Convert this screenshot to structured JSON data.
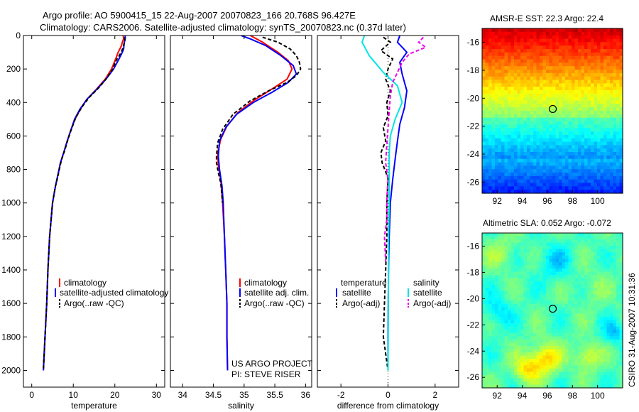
{
  "title_line1": "Argo profile: AO 5900415_15 22-Aug-2007 20070823_166 20.768S 96.427E",
  "title_line2": "Climatology: CARS2006. Satellite-adjusted climatology: synTS_20070823.nc (0.37d later)",
  "side_label": "CSIRO 31-Aug-2007 10:31:36",
  "project_line1": "US ARGO PROJECT",
  "project_line2": "PI: STEVE RISER",
  "chart_data": [
    {
      "type": "line",
      "name": "temperature-profile",
      "xlabel": "temperature",
      "ylabel": "",
      "xlim": [
        -2,
        32
      ],
      "ylim": [
        2100,
        0
      ],
      "xticks": [
        0,
        10,
        20,
        30
      ],
      "yticks": [
        0,
        200,
        400,
        600,
        800,
        1000,
        1200,
        1400,
        1600,
        1800,
        2000
      ],
      "legend": [
        "climatology",
        "satellite-adjusted climatology",
        "Argo(..raw -QC)"
      ],
      "series": [
        {
          "name": "climatology",
          "color": "#ff0000",
          "width": 2,
          "points": [
            [
              22.0,
              0
            ],
            [
              22.1,
              20
            ],
            [
              21.8,
              40
            ],
            [
              21.6,
              60
            ],
            [
              21.2,
              80
            ],
            [
              20.8,
              100
            ],
            [
              20.2,
              140
            ],
            [
              19.2,
              200
            ],
            [
              17.7,
              260
            ],
            [
              15.6,
              320
            ],
            [
              13.3,
              380
            ],
            [
              11.7,
              440
            ],
            [
              10.4,
              500
            ],
            [
              9.2,
              580
            ],
            [
              8.4,
              640
            ],
            [
              7.8,
              690
            ],
            [
              6.9,
              760
            ],
            [
              6.4,
              820
            ],
            [
              5.7,
              900
            ],
            [
              5.0,
              1000
            ],
            [
              4.3,
              1200
            ],
            [
              3.9,
              1400
            ],
            [
              3.6,
              1600
            ],
            [
              3.2,
              1800
            ],
            [
              2.8,
              2000
            ]
          ]
        },
        {
          "name": "satellite-adjusted climatology",
          "color": "#0000ff",
          "width": 2,
          "points": [
            [
              22.5,
              0
            ],
            [
              22.5,
              20
            ],
            [
              22.3,
              40
            ],
            [
              22.2,
              60
            ],
            [
              22.1,
              80
            ],
            [
              21.8,
              100
            ],
            [
              21.0,
              140
            ],
            [
              19.7,
              200
            ],
            [
              17.9,
              260
            ],
            [
              15.7,
              320
            ],
            [
              13.3,
              380
            ],
            [
              11.6,
              440
            ],
            [
              10.3,
              500
            ],
            [
              9.2,
              580
            ],
            [
              8.4,
              640
            ],
            [
              7.8,
              690
            ],
            [
              6.9,
              760
            ],
            [
              6.4,
              820
            ],
            [
              5.7,
              900
            ],
            [
              5.0,
              1000
            ],
            [
              4.3,
              1200
            ],
            [
              3.9,
              1400
            ],
            [
              3.6,
              1600
            ],
            [
              3.2,
              1800
            ],
            [
              2.8,
              2000
            ]
          ]
        },
        {
          "name": "Argo(..raw -QC)",
          "color": "#000000",
          "width": 2,
          "dash": "5,3",
          "points": [
            [
              22.3,
              10
            ],
            [
              22.4,
              30
            ],
            [
              22.2,
              50
            ],
            [
              22.0,
              70
            ],
            [
              21.7,
              90
            ],
            [
              21.3,
              110
            ],
            [
              20.3,
              150
            ],
            [
              19.5,
              200
            ],
            [
              18.2,
              250
            ],
            [
              16.2,
              310
            ],
            [
              13.8,
              370
            ],
            [
              12.0,
              430
            ],
            [
              10.6,
              490
            ],
            [
              9.4,
              570
            ],
            [
              8.6,
              630
            ],
            [
              7.9,
              690
            ],
            [
              7.2,
              740
            ],
            [
              6.8,
              780
            ],
            [
              6.2,
              850
            ],
            [
              5.7,
              900
            ],
            [
              5.0,
              1000
            ],
            [
              4.3,
              1200
            ],
            [
              3.9,
              1400
            ],
            [
              3.6,
              1600
            ],
            [
              3.2,
              1800
            ],
            [
              2.8,
              2000
            ]
          ]
        }
      ]
    },
    {
      "type": "line",
      "name": "salinity-profile",
      "xlabel": "salinity",
      "ylabel": "",
      "xlim": [
        33.8,
        36.1
      ],
      "ylim": [
        2100,
        0
      ],
      "xticks": [
        34,
        34.5,
        35,
        35.5,
        36
      ],
      "yticks": [
        0,
        200,
        400,
        600,
        800,
        1000,
        1200,
        1400,
        1600,
        1800,
        2000
      ],
      "legend": [
        "climatology",
        "satellite adj. clim.",
        "Argo(..raw -QC)"
      ],
      "series": [
        {
          "name": "climatology",
          "color": "#ff0000",
          "width": 2,
          "points": [
            [
              35.1,
              0
            ],
            [
              35.3,
              40
            ],
            [
              35.55,
              100
            ],
            [
              35.72,
              150
            ],
            [
              35.78,
              200
            ],
            [
              35.7,
              260
            ],
            [
              35.45,
              320
            ],
            [
              35.15,
              390
            ],
            [
              34.9,
              460
            ],
            [
              34.72,
              540
            ],
            [
              34.62,
              620
            ],
            [
              34.57,
              700
            ],
            [
              34.58,
              780
            ],
            [
              34.62,
              860
            ],
            [
              34.65,
              1000
            ],
            [
              34.68,
              1200
            ],
            [
              34.7,
              1400
            ],
            [
              34.72,
              1600
            ],
            [
              34.72,
              1800
            ],
            [
              34.73,
              2000
            ]
          ]
        },
        {
          "name": "satellite adj. clim.",
          "color": "#0000ff",
          "width": 2,
          "points": [
            [
              34.95,
              0
            ],
            [
              35.1,
              20
            ],
            [
              35.35,
              60
            ],
            [
              35.6,
              120
            ],
            [
              35.8,
              180
            ],
            [
              35.85,
              230
            ],
            [
              35.72,
              280
            ],
            [
              35.45,
              340
            ],
            [
              35.15,
              400
            ],
            [
              34.88,
              470
            ],
            [
              34.7,
              550
            ],
            [
              34.6,
              630
            ],
            [
              34.58,
              720
            ],
            [
              34.6,
              800
            ],
            [
              34.64,
              900
            ],
            [
              34.66,
              1000
            ],
            [
              34.68,
              1200
            ],
            [
              34.7,
              1400
            ],
            [
              34.72,
              1600
            ],
            [
              34.72,
              1800
            ],
            [
              34.73,
              2000
            ]
          ]
        },
        {
          "name": "Argo(..raw -QC)",
          "color": "#000000",
          "width": 2,
          "dash": "5,3",
          "points": [
            [
              35.3,
              10
            ],
            [
              35.55,
              40
            ],
            [
              35.75,
              80
            ],
            [
              35.85,
              120
            ],
            [
              35.9,
              160
            ],
            [
              35.92,
              200
            ],
            [
              35.85,
              240
            ],
            [
              35.7,
              280
            ],
            [
              35.4,
              330
            ],
            [
              35.1,
              390
            ],
            [
              34.82,
              470
            ],
            [
              34.65,
              560
            ],
            [
              34.57,
              640
            ],
            [
              34.55,
              720
            ],
            [
              34.55,
              760
            ],
            [
              34.58,
              820
            ],
            [
              34.62,
              880
            ],
            [
              34.65,
              1000
            ]
          ]
        }
      ]
    },
    {
      "type": "line",
      "name": "difference-profile",
      "xlabel": "difference from climatology",
      "ylabel": "",
      "xlim": [
        -3,
        3
      ],
      "ylim": [
        2100,
        0
      ],
      "xticks": [
        -2,
        0,
        2
      ],
      "yticks": [
        0,
        200,
        400,
        600,
        800,
        1000,
        1200,
        1400,
        1600,
        1800,
        2000
      ],
      "legend_groups": [
        "temperature",
        "salinity"
      ],
      "legend": [
        "satellite",
        "Argo(-adj)",
        "satellite",
        "Argo(-adj)"
      ],
      "series": [
        {
          "name": "temperature satellite",
          "color": "#0000ff",
          "width": 2,
          "points": [
            [
              0.5,
              0
            ],
            [
              0.4,
              40
            ],
            [
              0.8,
              100
            ],
            [
              0.5,
              160
            ],
            [
              0.6,
              230
            ],
            [
              0.8,
              330
            ],
            [
              0.7,
              430
            ],
            [
              0.5,
              530
            ],
            [
              0.4,
              630
            ],
            [
              0.3,
              740
            ],
            [
              0.2,
              860
            ],
            [
              0.1,
              1000
            ],
            [
              0.05,
              1200
            ],
            [
              0.02,
              1400
            ],
            [
              0.01,
              1600
            ],
            [
              0,
              1800
            ],
            [
              0,
              2000
            ]
          ]
        },
        {
          "name": "temperature Argo(-adj)",
          "color": "#000000",
          "width": 2,
          "dash": "5,3",
          "points": [
            [
              -0.2,
              10
            ],
            [
              0.1,
              40
            ],
            [
              -0.3,
              90
            ],
            [
              0.2,
              140
            ],
            [
              0.0,
              200
            ],
            [
              -0.1,
              260
            ],
            [
              0.1,
              330
            ],
            [
              -0.05,
              400
            ],
            [
              0.0,
              480
            ],
            [
              -0.2,
              550
            ],
            [
              -0.1,
              630
            ],
            [
              -0.3,
              700
            ],
            [
              -0.25,
              760
            ],
            [
              0.0,
              850
            ],
            [
              -0.05,
              1000
            ],
            [
              -0.05,
              1200
            ],
            [
              -0.1,
              1400
            ],
            [
              -0.15,
              1600
            ],
            [
              -0.2,
              1800
            ],
            [
              0,
              2000
            ]
          ]
        },
        {
          "name": "salinity satellite",
          "color": "#00e5e5",
          "width": 2,
          "points": [
            [
              -1.0,
              0
            ],
            [
              -1.1,
              40
            ],
            [
              -0.8,
              120
            ],
            [
              -0.2,
              220
            ],
            [
              0.4,
              300
            ],
            [
              0.6,
              400
            ],
            [
              0.3,
              500
            ],
            [
              0.1,
              600
            ],
            [
              0.05,
              700
            ],
            [
              0.05,
              800
            ],
            [
              0.05,
              1000
            ],
            [
              0.02,
              1200
            ],
            [
              0.02,
              1400
            ],
            [
              0.01,
              1600
            ],
            [
              0.01,
              1800
            ],
            [
              0,
              2000
            ]
          ]
        },
        {
          "name": "salinity Argo(-adj)",
          "color": "#ee00ee",
          "width": 2,
          "dash": "5,3",
          "points": [
            [
              1.5,
              10
            ],
            [
              1.3,
              40
            ],
            [
              1.6,
              70
            ],
            [
              0.9,
              110
            ],
            [
              0.6,
              160
            ],
            [
              0.4,
              220
            ],
            [
              0.2,
              280
            ],
            [
              0.1,
              360
            ],
            [
              0.05,
              450
            ],
            [
              0.0,
              550
            ],
            [
              -0.05,
              650
            ],
            [
              -0.1,
              760
            ],
            [
              0.0,
              860
            ],
            [
              -0.05,
              980
            ],
            [
              -0.05,
              1100
            ],
            [
              -0.15,
              1200
            ],
            [
              -0.1,
              1350
            ]
          ]
        }
      ]
    },
    {
      "type": "heatmap",
      "name": "sst-map",
      "title": "AMSR-E SST: 22.3  Argo: 22.4",
      "xlim": [
        90.8,
        102
      ],
      "ylim": [
        -26.8,
        -15
      ],
      "xticks": [
        92,
        94,
        96,
        98,
        100
      ],
      "yticks": [
        -16,
        -18,
        -20,
        -22,
        -24,
        -26
      ],
      "marker": [
        96.43,
        -20.77
      ],
      "field": "sst"
    },
    {
      "type": "heatmap",
      "name": "sla-map",
      "title": "Altimetric SLA: 0.052  Argo: -0.072",
      "xlim": [
        90.8,
        102
      ],
      "ylim": [
        -26.8,
        -15
      ],
      "xticks": [
        92,
        94,
        96,
        98,
        100
      ],
      "yticks": [
        -16,
        -18,
        -20,
        -22,
        -24,
        -26
      ],
      "marker": [
        96.43,
        -20.77
      ],
      "field": "sla"
    }
  ]
}
